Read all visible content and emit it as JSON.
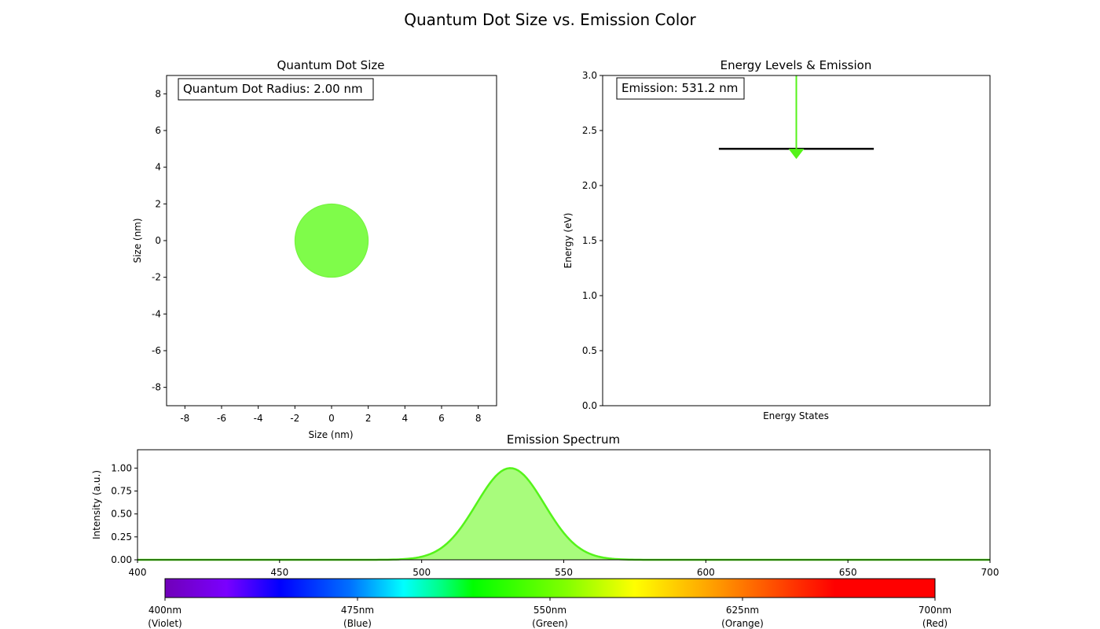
{
  "figure_title": "Quantum Dot Size vs. Emission Color",
  "chart_data": [
    {
      "id": "size",
      "type": "scatter",
      "title": "Quantum Dot Size",
      "xlabel": "Size (nm)",
      "ylabel": "Size (nm)",
      "xlim": [
        -9,
        9
      ],
      "ylim": [
        -9,
        9
      ],
      "xticks": [
        -8,
        -6,
        -4,
        -2,
        0,
        2,
        4,
        6,
        8
      ],
      "yticks": [
        -8,
        -6,
        -4,
        -2,
        0,
        2,
        4,
        6,
        8
      ],
      "circle": {
        "cx": 0,
        "cy": 0,
        "r": 2.0
      },
      "annotation": "Quantum Dot Radius: 2.00 nm",
      "grid": false
    },
    {
      "id": "energy",
      "type": "line",
      "title": "Energy Levels & Emission",
      "xlabel": "Energy States",
      "ylabel": "Energy (eV)",
      "ylim": [
        0,
        3
      ],
      "yticks": [
        "0.0",
        "0.5",
        "1.0",
        "1.5",
        "2.0",
        "2.5",
        "3.0"
      ],
      "level_energy": 2.334,
      "level_x": [
        0.3,
        0.7
      ],
      "arrow_x": 0.5,
      "arrow_from": 3.0,
      "arrow_to": 2.334,
      "annotation": "Emission: 531.2 nm",
      "grid": false
    },
    {
      "id": "spectrum",
      "type": "area",
      "title": "Emission Spectrum",
      "xlabel": "",
      "ylabel": "Intensity (a.u.)",
      "xlim": [
        400,
        700
      ],
      "ylim": [
        0,
        1.2
      ],
      "xticks": [
        400,
        450,
        500,
        550,
        600,
        650,
        700
      ],
      "yticks": [
        "0.00",
        "0.25",
        "0.50",
        "0.75",
        "1.00"
      ],
      "peak_wavelength": 531.2,
      "peak_intensity": 1.0,
      "sigma": 12,
      "grid": false
    }
  ],
  "colorbar": {
    "range": [
      400,
      700
    ],
    "ticks": [
      {
        "value": 400,
        "line1": "400nm",
        "line2": "(Violet)"
      },
      {
        "value": 475,
        "line1": "475nm",
        "line2": "(Blue)"
      },
      {
        "value": 550,
        "line1": "550nm",
        "line2": "(Green)"
      },
      {
        "value": 625,
        "line1": "625nm",
        "line2": "(Orange)"
      },
      {
        "value": 700,
        "line1": "700nm",
        "line2": "(Red)"
      }
    ]
  },
  "colors": {
    "dot_fill": "#7ffc4a",
    "dot_stroke": "#72f23c",
    "emission": "#55f31a",
    "spectrum_fill": "#a8fc7c",
    "level": "#000000"
  }
}
